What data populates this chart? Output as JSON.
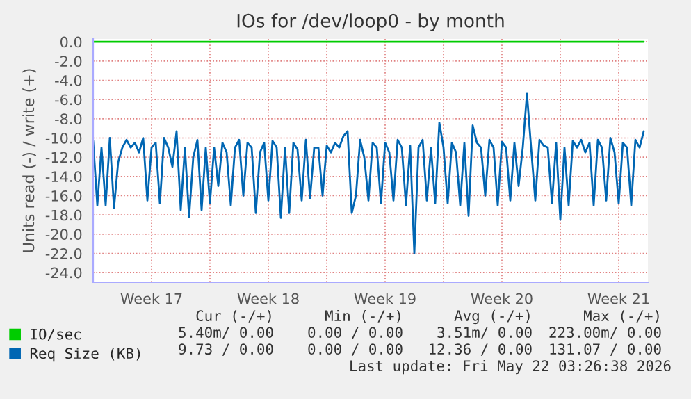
{
  "chart_data": {
    "type": "line",
    "title": "IOs for /dev/loop0 - by month",
    "ylabel": "Units read (-) / write (+)",
    "xlim": [
      "2026-04-20T00:00",
      "2026-05-23T06:00"
    ],
    "ylim": [
      -25,
      0.3
    ],
    "xticks": [
      {
        "value": "2026-04-20T00:00",
        "label": null
      },
      {
        "value": "2026-04-23T12:00",
        "label": "Week 17"
      },
      {
        "value": "2026-04-27T00:00",
        "label": null
      },
      {
        "value": "2026-04-30T12:00",
        "label": "Week 18"
      },
      {
        "value": "2026-05-04T00:00",
        "label": null
      },
      {
        "value": "2026-05-07T12:00",
        "label": "Week 19"
      },
      {
        "value": "2026-05-11T00:00",
        "label": null
      },
      {
        "value": "2026-05-14T12:00",
        "label": "Week 20"
      },
      {
        "value": "2026-05-18T00:00",
        "label": null
      },
      {
        "value": "2026-05-21T12:00",
        "label": "Week 21"
      }
    ],
    "yticks": [
      {
        "value": 0,
        "label": "0.0"
      },
      {
        "value": -2,
        "label": "-2.0"
      },
      {
        "value": -4,
        "label": "-4.0"
      },
      {
        "value": -6,
        "label": "-6.0"
      },
      {
        "value": -8,
        "label": "-8.0"
      },
      {
        "value": -10,
        "label": "-10.0"
      },
      {
        "value": -12,
        "label": "-12.0"
      },
      {
        "value": -14,
        "label": "-14.0"
      },
      {
        "value": -16,
        "label": "-16.0"
      },
      {
        "value": -18,
        "label": "-18.0"
      },
      {
        "value": -20,
        "label": "-20.0"
      },
      {
        "value": -22,
        "label": "-22.0"
      },
      {
        "value": -24,
        "label": "-24.0"
      }
    ],
    "grid": true,
    "legend": "bottom left",
    "series": [
      {
        "name": "IO/sec",
        "color": "#00cc00",
        "x": [
          "2026-04-20T00:00",
          "2026-05-23T00:00"
        ],
        "values": [
          0,
          0
        ]
      },
      {
        "name": "Req Size (KB)",
        "color": "#0066b3",
        "x": [
          "2026-04-20T00:00",
          "2026-04-20T06:00",
          "2026-04-20T12:00",
          "2026-04-20T18:00",
          "2026-04-21T00:00",
          "2026-04-21T06:00",
          "2026-04-21T12:00",
          "2026-04-21T18:00",
          "2026-04-22T00:00",
          "2026-04-22T06:00",
          "2026-04-22T12:00",
          "2026-04-22T18:00",
          "2026-04-23T00:00",
          "2026-04-23T06:00",
          "2026-04-23T12:00",
          "2026-04-23T18:00",
          "2026-04-24T00:00",
          "2026-04-24T06:00",
          "2026-04-24T12:00",
          "2026-04-24T18:00",
          "2026-04-25T00:00",
          "2026-04-25T06:00",
          "2026-04-25T12:00",
          "2026-04-25T18:00",
          "2026-04-26T00:00",
          "2026-04-26T06:00",
          "2026-04-26T12:00",
          "2026-04-26T18:00",
          "2026-04-27T00:00",
          "2026-04-27T06:00",
          "2026-04-27T12:00",
          "2026-04-27T18:00",
          "2026-04-28T00:00",
          "2026-04-28T06:00",
          "2026-04-28T12:00",
          "2026-04-28T18:00",
          "2026-04-29T00:00",
          "2026-04-29T06:00",
          "2026-04-29T12:00",
          "2026-04-29T18:00",
          "2026-04-30T00:00",
          "2026-04-30T06:00",
          "2026-04-30T12:00",
          "2026-04-30T18:00",
          "2026-05-01T00:00",
          "2026-05-01T06:00",
          "2026-05-01T12:00",
          "2026-05-01T18:00",
          "2026-05-02T00:00",
          "2026-05-02T06:00",
          "2026-05-02T12:00",
          "2026-05-02T18:00",
          "2026-05-03T00:00",
          "2026-05-03T06:00",
          "2026-05-03T12:00",
          "2026-05-03T18:00",
          "2026-05-04T00:00",
          "2026-05-04T06:00",
          "2026-05-04T12:00",
          "2026-05-04T18:00",
          "2026-05-05T00:00",
          "2026-05-05T06:00",
          "2026-05-05T12:00",
          "2026-05-05T18:00",
          "2026-05-06T00:00",
          "2026-05-06T06:00",
          "2026-05-06T12:00",
          "2026-05-06T18:00",
          "2026-05-07T00:00",
          "2026-05-07T06:00",
          "2026-05-07T12:00",
          "2026-05-07T18:00",
          "2026-05-08T00:00",
          "2026-05-08T06:00",
          "2026-05-08T12:00",
          "2026-05-08T18:00",
          "2026-05-09T00:00",
          "2026-05-09T06:00",
          "2026-05-09T12:00",
          "2026-05-09T18:00",
          "2026-05-10T00:00",
          "2026-05-10T06:00",
          "2026-05-10T12:00",
          "2026-05-10T18:00",
          "2026-05-11T00:00",
          "2026-05-11T06:00",
          "2026-05-11T12:00",
          "2026-05-11T18:00",
          "2026-05-12T00:00",
          "2026-05-12T06:00",
          "2026-05-12T12:00",
          "2026-05-12T18:00",
          "2026-05-13T00:00",
          "2026-05-13T06:00",
          "2026-05-13T12:00",
          "2026-05-13T18:00",
          "2026-05-14T00:00",
          "2026-05-14T06:00",
          "2026-05-14T12:00",
          "2026-05-14T18:00",
          "2026-05-15T00:00",
          "2026-05-15T06:00",
          "2026-05-15T12:00",
          "2026-05-15T18:00",
          "2026-05-16T00:00",
          "2026-05-16T06:00",
          "2026-05-16T12:00",
          "2026-05-16T18:00",
          "2026-05-17T00:00",
          "2026-05-17T06:00",
          "2026-05-17T12:00",
          "2026-05-17T18:00",
          "2026-05-18T00:00",
          "2026-05-18T06:00",
          "2026-05-18T12:00",
          "2026-05-18T18:00",
          "2026-05-19T00:00",
          "2026-05-19T06:00",
          "2026-05-19T12:00",
          "2026-05-19T18:00",
          "2026-05-20T00:00",
          "2026-05-20T06:00",
          "2026-05-20T12:00",
          "2026-05-20T18:00",
          "2026-05-21T00:00",
          "2026-05-21T06:00",
          "2026-05-21T12:00",
          "2026-05-21T18:00",
          "2026-05-22T00:00",
          "2026-05-22T06:00",
          "2026-05-22T12:00",
          "2026-05-22T18:00",
          "2026-05-23T00:00"
        ],
        "values": [
          -10.3,
          -17,
          -11,
          -17,
          -10,
          -17.3,
          -12.5,
          -11,
          -10.2,
          -11,
          -10.5,
          -11.5,
          -10,
          -16.5,
          -11,
          -10.5,
          -16.8,
          -10,
          -11,
          -13,
          -9.3,
          -17.5,
          -11,
          -18.2,
          -12,
          -10.2,
          -17.5,
          -11,
          -16.8,
          -11,
          -15,
          -10.5,
          -11.5,
          -17,
          -11,
          -10.2,
          -16,
          -10.5,
          -11,
          -17.8,
          -11.5,
          -10.5,
          -16.5,
          -10.3,
          -11,
          -18.3,
          -11,
          -17.8,
          -10.5,
          -11.2,
          -16.5,
          -10.2,
          -16.3,
          -11,
          -11,
          -16,
          -10.8,
          -11.5,
          -10.5,
          -11,
          -9.8,
          -9.3,
          -17.8,
          -16,
          -10.2,
          -12,
          -16.5,
          -10.5,
          -11,
          -16.8,
          -10.5,
          -11.5,
          -16.5,
          -10.2,
          -11,
          -17,
          -10.8,
          -22,
          -11,
          -10.2,
          -16.5,
          -11,
          -16.8,
          -8.4,
          -11,
          -16.8,
          -10.5,
          -11.5,
          -17,
          -10.5,
          -18.1,
          -8.7,
          -10.5,
          -11,
          -16,
          -10.2,
          -11,
          -17,
          -10.4,
          -11,
          -16.5,
          -10.5,
          -15,
          -11,
          -5.4,
          -11,
          -16.5,
          -10.2,
          -10.8,
          -11,
          -16.8,
          -10.5,
          -18.5,
          -11,
          -17,
          -10.3,
          -11,
          -10.2,
          -11.5,
          -10.5,
          -17,
          -10.2,
          -11,
          -16.5,
          -10,
          -11.5,
          -16.8,
          -10.5,
          -11,
          -17,
          -10.2,
          -11,
          -9.3
        ]
      }
    ],
    "annotations": [
      "Cur (-/+)",
      "Min (-/+)",
      "Avg (-/+)",
      "Max (-/+)",
      "5.40m/ 0.00",
      "0.00 / 0.00",
      "3.51m/ 0.00",
      "223.00m/ 0.00",
      "9.73 / 0.00",
      "0.00 / 0.00",
      "12.36 / 0.00",
      "131.07 / 0.00",
      "Last update: Fri May 22 03:26:38 2026"
    ]
  }
}
